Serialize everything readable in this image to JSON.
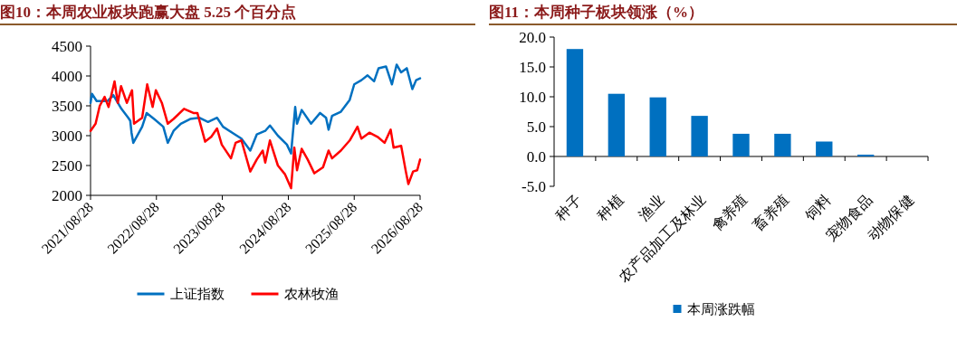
{
  "chart_data": [
    {
      "type": "line",
      "title": "图10：本周农业板块跑赢大盘 5.25 个百分点",
      "legend": "bottom",
      "xlim": [
        "2021-08-28",
        "2026-08-28"
      ],
      "xticks": [
        {
          "value": "2021-08-28",
          "label": "2021/08/28"
        },
        {
          "value": "2022-08-28",
          "label": "2022/08/28"
        },
        {
          "value": "2023-08-28",
          "label": "2023/08/28"
        },
        {
          "value": "2024-08-28",
          "label": "2024/08/28"
        },
        {
          "value": "2025-08-28",
          "label": "2025/08/28"
        },
        {
          "value": "2026-08-28",
          "label": "2026/08/28"
        }
      ],
      "ylim": [
        2000,
        4500
      ],
      "yticks": [
        2000,
        2500,
        3000,
        3500,
        4000,
        4500
      ],
      "series": [
        {
          "name": "上证指数",
          "color": "#0070c0",
          "x": [
            "2021-08-28",
            "2021-09-05",
            "2021-10-01",
            "2021-12-01",
            "2022-01-01",
            "2022-02-15",
            "2022-03-25",
            "2022-04-05",
            "2022-04-12",
            "2022-04-22",
            "2022-06-10",
            "2022-07-05",
            "2022-08-15",
            "2022-10-05",
            "2022-10-30",
            "2022-12-01",
            "2023-01-10",
            "2023-03-03",
            "2023-04-22",
            "2023-06-10",
            "2023-07-30",
            "2023-09-01",
            "2023-10-22",
            "2023-12-12",
            "2024-01-30",
            "2024-03-06",
            "2024-04-22",
            "2024-05-18",
            "2024-07-01",
            "2024-08-20",
            "2024-09-12",
            "2024-10-05",
            "2024-10-15",
            "2024-11-10",
            "2025-01-01",
            "2025-02-20",
            "2025-03-25",
            "2025-04-08",
            "2025-04-27",
            "2025-06-15",
            "2025-08-03",
            "2025-08-28",
            "2025-10-07",
            "2025-11-10",
            "2025-12-16",
            "2026-01-10",
            "2026-02-20",
            "2026-03-25",
            "2026-04-20",
            "2026-05-15",
            "2026-06-15",
            "2026-07-16",
            "2026-08-06",
            "2026-08-28"
          ],
          "values": [
            3550,
            3700,
            3580,
            3580,
            3680,
            3450,
            3300,
            3250,
            3050,
            2880,
            3150,
            3380,
            3280,
            3150,
            2880,
            3080,
            3200,
            3280,
            3300,
            3230,
            3300,
            3150,
            3050,
            2950,
            2750,
            3020,
            3080,
            3170,
            3000,
            2850,
            2700,
            3480,
            3200,
            3430,
            3200,
            3380,
            3300,
            3100,
            3330,
            3400,
            3600,
            3860,
            3930,
            4010,
            3910,
            4130,
            4160,
            3860,
            4190,
            4060,
            4130,
            3780,
            3930,
            3960
          ]
        },
        {
          "name": "农林牧渔",
          "color": "#ff0000",
          "x": [
            "2021-08-28",
            "2021-09-25",
            "2021-10-18",
            "2021-11-14",
            "2021-12-06",
            "2022-01-08",
            "2022-01-26",
            "2022-02-13",
            "2022-03-17",
            "2022-04-15",
            "2022-04-26",
            "2022-06-10",
            "2022-07-08",
            "2022-08-07",
            "2022-08-25",
            "2022-09-27",
            "2022-10-30",
            "2022-12-01",
            "2023-01-28",
            "2023-03-21",
            "2023-04-12",
            "2023-05-25",
            "2023-06-28",
            "2023-07-30",
            "2023-08-25",
            "2023-10-15",
            "2023-11-10",
            "2023-12-12",
            "2024-01-30",
            "2024-03-06",
            "2024-04-08",
            "2024-04-22",
            "2024-05-18",
            "2024-07-01",
            "2024-08-10",
            "2024-09-12",
            "2024-09-30",
            "2024-10-15",
            "2024-11-10",
            "2024-12-13",
            "2025-01-19",
            "2025-03-08",
            "2025-04-08",
            "2025-04-27",
            "2025-06-15",
            "2025-08-03",
            "2025-09-15",
            "2025-10-07",
            "2025-11-20",
            "2026-01-04",
            "2026-02-12",
            "2026-03-18",
            "2026-04-03",
            "2026-05-15",
            "2026-06-10",
            "2026-06-24",
            "2026-07-20",
            "2026-08-12",
            "2026-08-28"
          ],
          "values": [
            3080,
            3200,
            3500,
            3650,
            3480,
            3910,
            3550,
            3830,
            3550,
            3760,
            3200,
            3300,
            3860,
            3480,
            3760,
            3550,
            3200,
            3280,
            3450,
            3380,
            3380,
            2900,
            2980,
            3120,
            2850,
            2620,
            2880,
            2920,
            2400,
            2600,
            2750,
            2550,
            2920,
            2500,
            2350,
            2120,
            2800,
            2420,
            2780,
            2600,
            2370,
            2470,
            2750,
            2620,
            2750,
            2920,
            3150,
            2950,
            3050,
            2980,
            2880,
            3100,
            2800,
            2830,
            2400,
            2190,
            2400,
            2420,
            2600
          ]
        }
      ]
    },
    {
      "type": "bar",
      "title": "图11：本周种子板块领涨（%）",
      "legend": "bottom",
      "categories": [
        "种子",
        "种植",
        "渔业",
        "农产品加工及林业",
        "禽养殖",
        "畜养殖",
        "饲料",
        "宠物食品",
        "动物保健"
      ],
      "ylim": [
        -5,
        20
      ],
      "yticks": [
        {
          "value": -5,
          "label": "-5.0"
        },
        {
          "value": 0,
          "label": "0.0"
        },
        {
          "value": 5,
          "label": "5.0"
        },
        {
          "value": 10,
          "label": "10.0"
        },
        {
          "value": 15,
          "label": "15.0"
        },
        {
          "value": 20,
          "label": "20.0"
        }
      ],
      "series": [
        {
          "name": "本周涨跌幅",
          "color": "#0070c0",
          "values": [
            18.0,
            10.5,
            9.9,
            6.8,
            3.8,
            3.8,
            2.5,
            0.3,
            0.0
          ]
        }
      ]
    }
  ]
}
